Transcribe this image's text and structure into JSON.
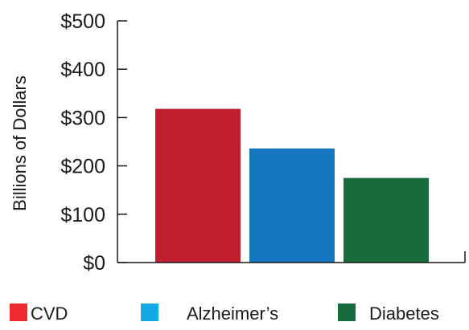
{
  "chart_data": {
    "type": "bar",
    "categories": [
      "CVD",
      "Alzheimer’s",
      "Diabetes"
    ],
    "values": [
      318,
      236,
      175
    ],
    "colors": [
      "#c0202e",
      "#1476bf",
      "#176b3c"
    ],
    "legend_colors": [
      "#ee2a2e",
      "#12a9e6",
      "#176b3c"
    ],
    "title": "",
    "xlabel": "",
    "ylabel": "Billions of Dollars",
    "ylim": [
      0,
      500
    ],
    "yticks": [
      0,
      100,
      200,
      300,
      400,
      500
    ],
    "ytick_labels": [
      "$0",
      "$100",
      "$200",
      "$300",
      "$400",
      "$500"
    ],
    "grid": false,
    "legend_position": "bottom"
  }
}
